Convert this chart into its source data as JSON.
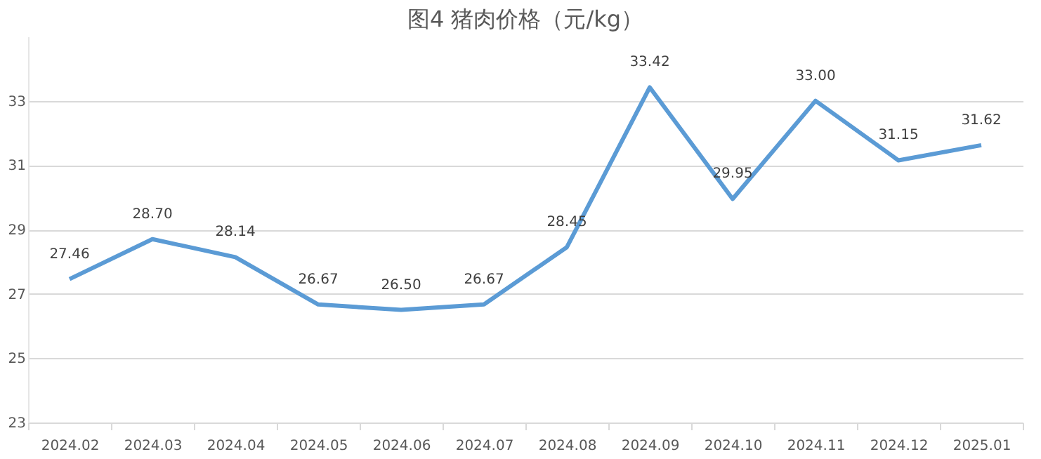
{
  "chart_data": {
    "type": "line",
    "title": "图4 猪肉价格（元/kg）",
    "categories": [
      "2024.02",
      "2024.03",
      "2024.04",
      "2024.05",
      "2024.06",
      "2024.07",
      "2024.08",
      "2024.09",
      "2024.10",
      "2024.11",
      "2024.12",
      "2025.01"
    ],
    "series": [
      {
        "color": "#5b9bd5",
        "values": [
          27.46,
          28.7,
          28.14,
          26.67,
          26.5,
          26.67,
          28.45,
          33.42,
          29.95,
          33.0,
          31.15,
          31.62
        ],
        "value_labels": [
          "27.46",
          "28.70",
          "28.14",
          "26.67",
          "26.50",
          "26.67",
          "28.45",
          "33.42",
          "29.95",
          "33.00",
          "31.15",
          "31.62"
        ]
      }
    ],
    "ylim": [
      23,
      35
    ],
    "yticks": [
      23,
      25,
      27,
      29,
      31,
      33
    ],
    "grid": "y",
    "marker": "none",
    "line_style": "solid"
  }
}
